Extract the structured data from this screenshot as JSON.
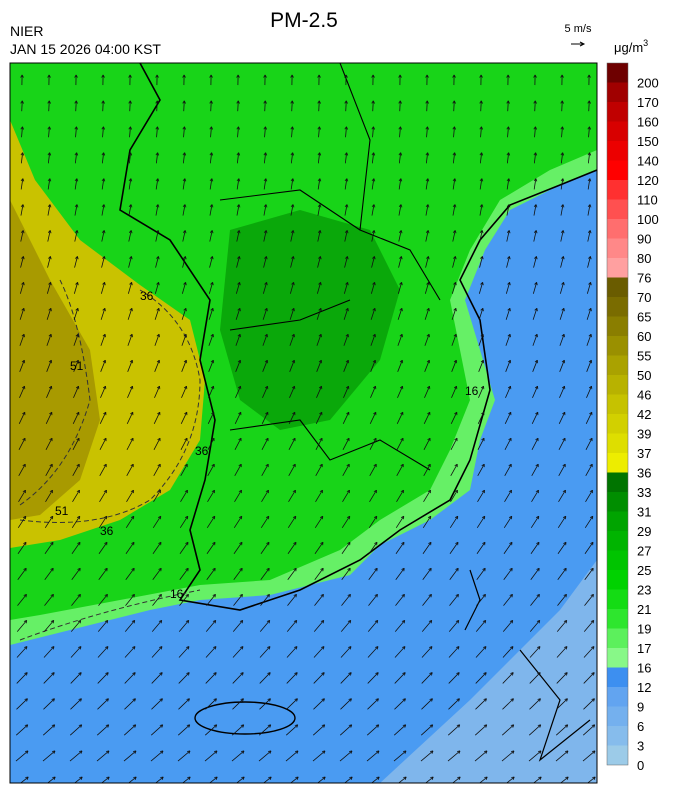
{
  "header": {
    "agency": "NIER",
    "time": "JAN 15 2026 04:00 KST",
    "title": "PM-2.5"
  },
  "wind_scale": {
    "label": "5 m/s"
  },
  "colorbar": {
    "unit": "μg/m",
    "unit_power": "3",
    "levels": [
      0,
      3,
      6,
      9,
      12,
      16,
      17,
      19,
      21,
      23,
      25,
      27,
      29,
      31,
      33,
      36,
      37,
      39,
      42,
      46,
      50,
      55,
      60,
      65,
      70,
      76,
      80,
      90,
      100,
      110,
      120,
      140,
      150,
      160,
      170,
      200
    ],
    "colors": [
      "#9ccbe8",
      "#86bcec",
      "#74b0ee",
      "#62a4f0",
      "#3d8ff0",
      "#88f888",
      "#5cf05c",
      "#2ee62e",
      "#14dc14",
      "#00d200",
      "#00c400",
      "#00b400",
      "#00a400",
      "#008e00",
      "#007400",
      "#eded00",
      "#dede00",
      "#d2d000",
      "#c6c200",
      "#b8b200",
      "#aaa200",
      "#9a9000",
      "#8a7e00",
      "#7a6c00",
      "#6a5c00",
      "#ffa0a0",
      "#ff8888",
      "#ff6e6e",
      "#ff5050",
      "#ff3030",
      "#ff0000",
      "#ec0000",
      "#d80000",
      "#c00000",
      "#a00000",
      "#6e0000"
    ]
  },
  "contour_labels": [
    "36",
    "51",
    "36",
    "51",
    "36",
    "16",
    "16"
  ]
}
